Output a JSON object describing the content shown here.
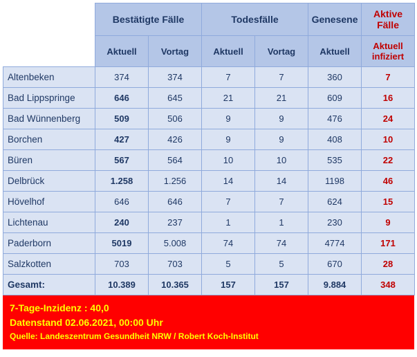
{
  "headers": {
    "confirmed": "Bestätigte Fälle",
    "deaths": "Todesfälle",
    "recovered": "Genesene",
    "active": "Aktive Fälle",
    "current": "Aktuell",
    "previous": "Vortag",
    "active_current": "Aktuell infiziert"
  },
  "rows": [
    {
      "name": "Altenbeken",
      "conf_cur": "374",
      "conf_prev": "374",
      "death_cur": "7",
      "death_prev": "7",
      "rec_cur": "360",
      "active": "7",
      "bold_conf": false
    },
    {
      "name": "Bad Lippspringe",
      "conf_cur": "646",
      "conf_prev": "645",
      "death_cur": "21",
      "death_prev": "21",
      "rec_cur": "609",
      "active": "16",
      "bold_conf": true
    },
    {
      "name": "Bad Wünnenberg",
      "conf_cur": "509",
      "conf_prev": "506",
      "death_cur": "9",
      "death_prev": "9",
      "rec_cur": "476",
      "active": "24",
      "bold_conf": true
    },
    {
      "name": "Borchen",
      "conf_cur": "427",
      "conf_prev": "426",
      "death_cur": "9",
      "death_prev": "9",
      "rec_cur": "408",
      "active": "10",
      "bold_conf": true
    },
    {
      "name": "Büren",
      "conf_cur": "567",
      "conf_prev": "564",
      "death_cur": "10",
      "death_prev": "10",
      "rec_cur": "535",
      "active": "22",
      "bold_conf": true
    },
    {
      "name": "Delbrück",
      "conf_cur": "1.258",
      "conf_prev": "1.256",
      "death_cur": "14",
      "death_prev": "14",
      "rec_cur": "1198",
      "active": "46",
      "bold_conf": true
    },
    {
      "name": "Hövelhof",
      "conf_cur": "646",
      "conf_prev": "646",
      "death_cur": "7",
      "death_prev": "7",
      "rec_cur": "624",
      "active": "15",
      "bold_conf": false
    },
    {
      "name": "Lichtenau",
      "conf_cur": "240",
      "conf_prev": "237",
      "death_cur": "1",
      "death_prev": "1",
      "rec_cur": "230",
      "active": "9",
      "bold_conf": true
    },
    {
      "name": "Paderborn",
      "conf_cur": "5019",
      "conf_prev": "5.008",
      "death_cur": "74",
      "death_prev": "74",
      "rec_cur": "4774",
      "active": "171",
      "bold_conf": true
    },
    {
      "name": "Salzkotten",
      "conf_cur": "703",
      "conf_prev": "703",
      "death_cur": "5",
      "death_prev": "5",
      "rec_cur": "670",
      "active": "28",
      "bold_conf": false
    }
  ],
  "total": {
    "name": "Gesamt:",
    "conf_cur": "10.389",
    "conf_prev": "10.365",
    "death_cur": "157",
    "death_prev": "157",
    "rec_cur": "9.884",
    "active": "348"
  },
  "footer": {
    "incidence": "7-Tage-Inzidenz : 40,0",
    "date": "Datenstand 02.06.2021, 00:00 Uhr",
    "source": "Quelle: Landeszentrum Gesundheit NRW / Robert Koch-Institut"
  }
}
